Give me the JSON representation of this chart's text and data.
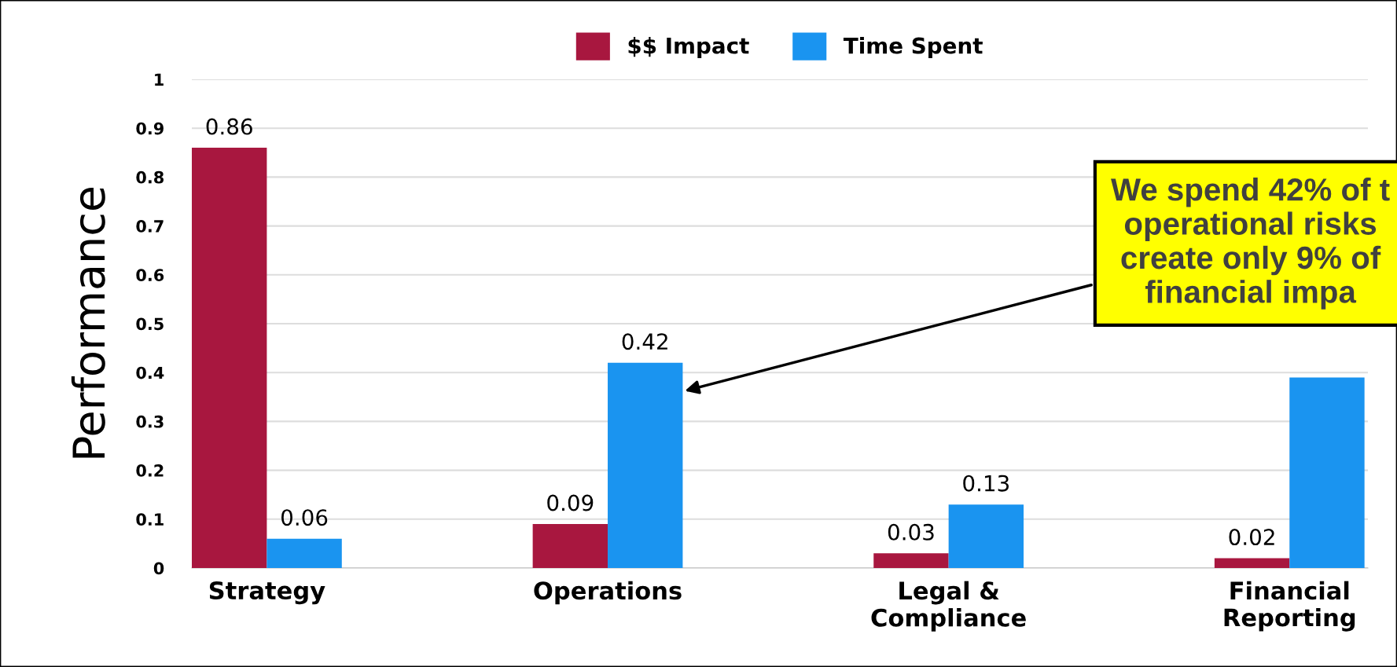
{
  "chart_data": {
    "type": "bar",
    "ylabel": "Performance",
    "categories": [
      "Strategy",
      "Operations",
      "Legal &\nCompliance",
      "Financial\nReporting"
    ],
    "series": [
      {
        "name": "$$ Impact",
        "color": "#a8173f",
        "values": [
          0.86,
          0.09,
          0.03,
          0.02
        ],
        "value_labels": [
          "0.86",
          "0.09",
          "0.03",
          "0.02"
        ]
      },
      {
        "name": "Time Spent",
        "color": "#1a94f0",
        "values": [
          0.06,
          0.42,
          0.13,
          0.39
        ],
        "value_labels": [
          "0.06",
          "0.42",
          "0.13",
          null
        ]
      }
    ],
    "ylim": [
      0,
      1
    ],
    "yticks": [
      0,
      0.1,
      0.2,
      0.3,
      0.4,
      0.5,
      0.6,
      0.7,
      0.8,
      0.9,
      1
    ],
    "grid": "y",
    "legend": "top",
    "annotations": [
      "We spend 42% of t\noperational risks\ncreate only 9% of\nfinancial impa"
    ]
  }
}
